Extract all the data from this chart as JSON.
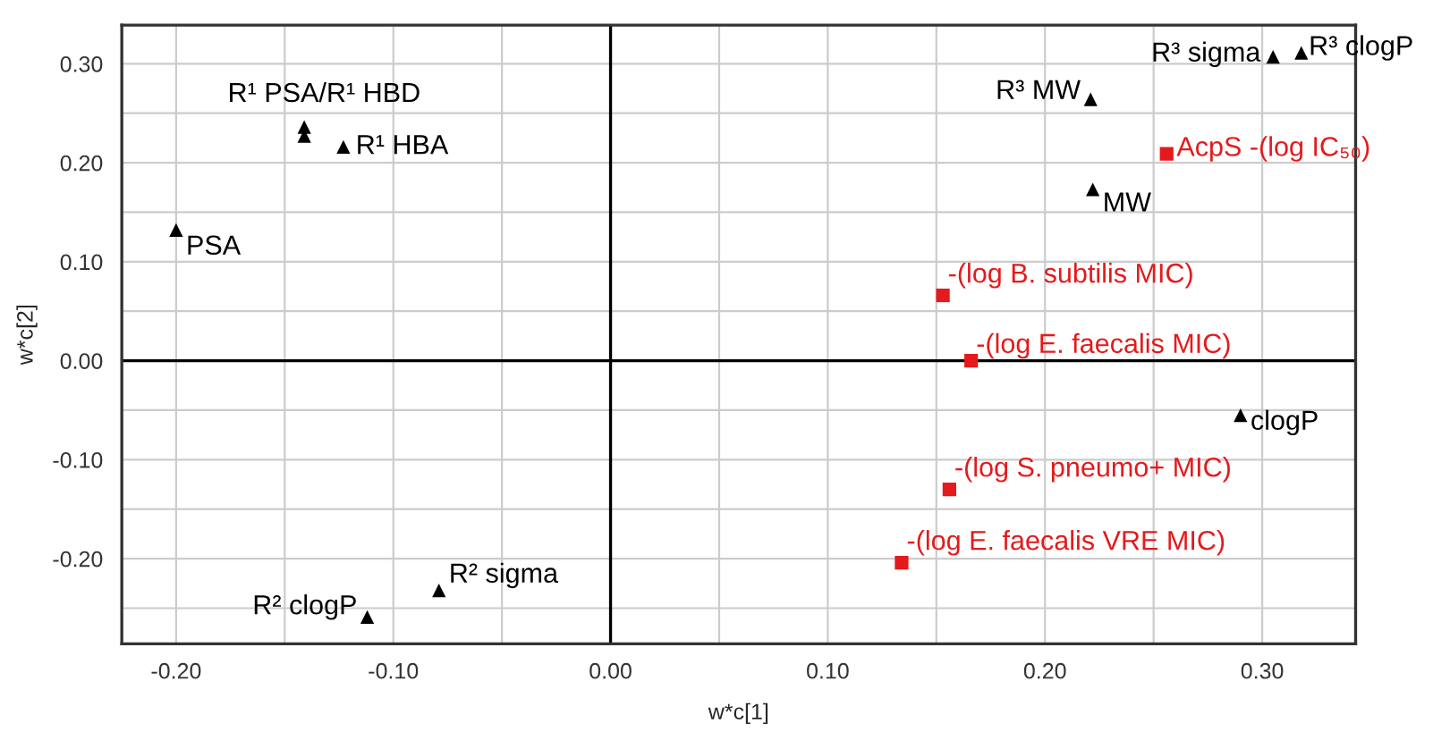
{
  "chart_data": {
    "type": "scatter",
    "xlabel": "w*c[1]",
    "ylabel": "w*c[2]",
    "series": [
      {
        "color": "#000000",
        "marker": "triangle",
        "x": [
          -0.141,
          -0.141,
          -0.123,
          -0.2,
          -0.112,
          -0.079,
          0.305,
          0.318,
          0.221,
          0.222,
          0.29
        ],
        "values": [
          0.236,
          0.227,
          0.216,
          0.132,
          -0.259,
          -0.232,
          0.307,
          0.311,
          0.264,
          0.173,
          -0.055
        ],
        "value_labels": [
          "R¹ PSA/R¹ HBD",
          null,
          "R¹ HBA",
          "PSA",
          "R² clogP",
          "R² sigma",
          "R³ sigma",
          "R³ clogP",
          "R³ MW",
          "MW",
          "clogP"
        ]
      },
      {
        "color": "#e41a1c",
        "marker": "square",
        "x": [
          0.256,
          0.153,
          0.166,
          0.156,
          0.134
        ],
        "values": [
          0.209,
          0.066,
          0.0,
          -0.13,
          -0.204
        ],
        "value_labels": [
          "AcpS -(log IC₅₀)",
          "-(log B. subtilis MIC)",
          "-(log E. faecalis MIC)",
          "-(log S. pneumo+ MIC)",
          "-(log E. faecalis VRE MIC)"
        ]
      }
    ],
    "xlim": [
      -0.225,
      0.343
    ],
    "ylim": [
      -0.286,
      0.339
    ],
    "xticks": [
      {
        "value": -0.2,
        "label": "-0.20"
      },
      {
        "value": -0.15,
        "label": null
      },
      {
        "value": -0.1,
        "label": "-0.10"
      },
      {
        "value": -0.05,
        "label": null
      },
      {
        "value": 0.0,
        "label": "0.00"
      },
      {
        "value": 0.05,
        "label": null
      },
      {
        "value": 0.1,
        "label": "0.10"
      },
      {
        "value": 0.15,
        "label": null
      },
      {
        "value": 0.2,
        "label": "0.20"
      },
      {
        "value": 0.25,
        "label": null
      },
      {
        "value": 0.3,
        "label": "0.30"
      }
    ],
    "yticks": [
      {
        "value": -0.25,
        "label": null
      },
      {
        "value": -0.2,
        "label": "-0.20"
      },
      {
        "value": -0.15,
        "label": null
      },
      {
        "value": -0.1,
        "label": "-0.10"
      },
      {
        "value": -0.05,
        "label": null
      },
      {
        "value": 0.0,
        "label": "0.00"
      },
      {
        "value": 0.05,
        "label": null
      },
      {
        "value": 0.1,
        "label": "0.10"
      },
      {
        "value": 0.15,
        "label": null
      },
      {
        "value": 0.2,
        "label": "0.20"
      },
      {
        "value": 0.25,
        "label": null
      },
      {
        "value": 0.3,
        "label": "0.30"
      }
    ],
    "grid": true
  }
}
